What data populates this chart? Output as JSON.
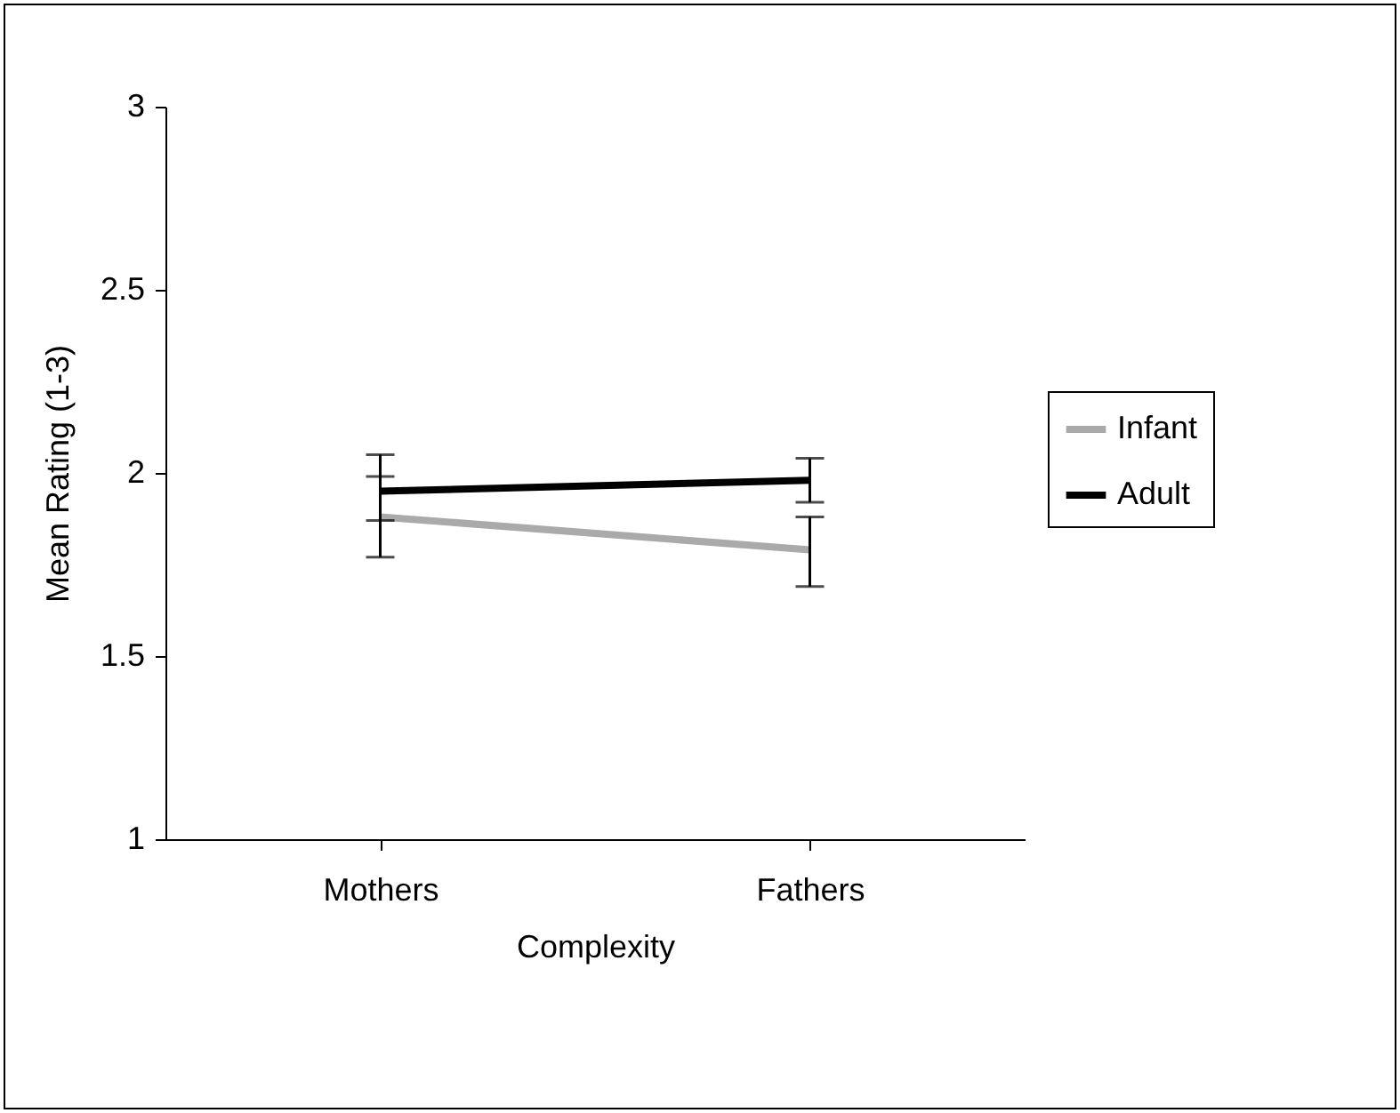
{
  "chart_data": {
    "type": "line",
    "xlabel": "Complexity",
    "ylabel": "Mean Rating (1-3)",
    "categories": [
      "Mothers",
      "Fathers"
    ],
    "series": [
      {
        "name": "Infant",
        "color": "#aaaaaa",
        "values": [
          1.88,
          1.79
        ],
        "errors": [
          [
            1.77,
            1.99
          ],
          [
            1.69,
            1.88
          ]
        ]
      },
      {
        "name": "Adult",
        "color": "#000000",
        "values": [
          1.95,
          1.98
        ],
        "errors": [
          [
            1.87,
            2.05
          ],
          [
            1.92,
            2.04
          ]
        ]
      }
    ],
    "ylim": [
      1,
      3
    ],
    "yticks": [
      1,
      1.5,
      2,
      2.5,
      3
    ],
    "grid": false,
    "legend": "right",
    "marker": "none",
    "line_style": "solid"
  }
}
